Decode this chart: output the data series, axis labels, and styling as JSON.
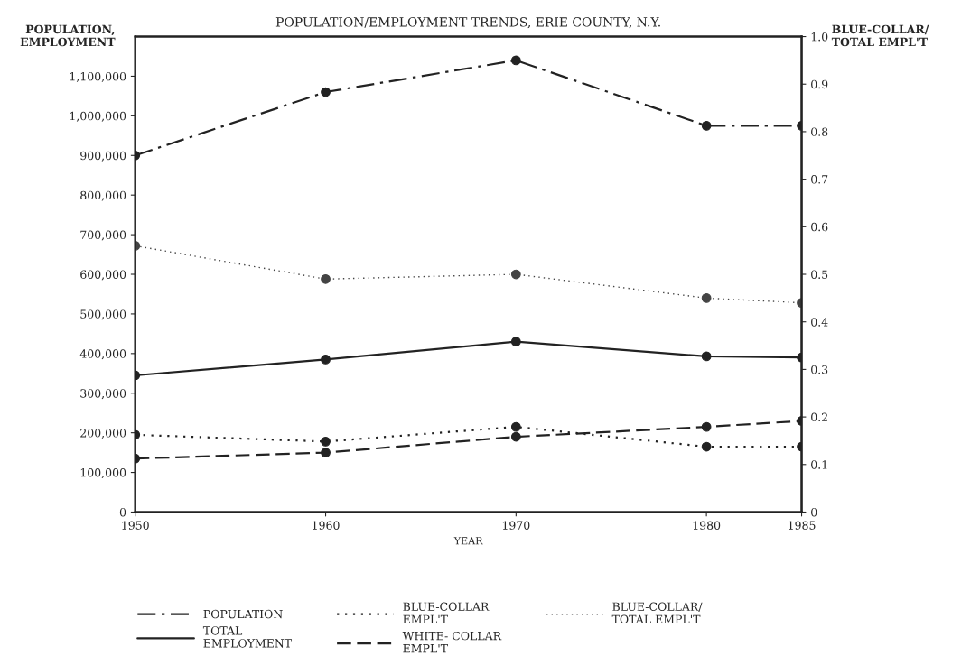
{
  "chart_data": {
    "type": "line",
    "title": "POPULATION/EMPLOYMENT TRENDS, ERIE COUNTY, N.Y.",
    "xlabel": "YEAR",
    "ylabel": "POPULATION,\nEMPLOYMENT",
    "y2label": "BLUE-COLLAR/\nTOTAL EMPL'T",
    "x": [
      1950,
      1960,
      1970,
      1980,
      1985
    ],
    "series": [
      {
        "name": "POPULATION",
        "color": "#222222",
        "line_style": "dashdot",
        "values": [
          900000,
          1060000,
          1140000,
          975000,
          975000
        ]
      },
      {
        "name": "TOTAL\nEMPLOYMENT",
        "color": "#222222",
        "line_style": "solid",
        "values": [
          345000,
          385000,
          430000,
          393000,
          390000
        ]
      },
      {
        "name": "BLUE-COLLAR\nEMPL'T",
        "color": "#222222",
        "line_style": "dotted",
        "values": [
          195000,
          178000,
          215000,
          165000,
          165000
        ]
      },
      {
        "name": "WHITE- COLLAR\nEMPL'T",
        "color": "#222222",
        "line_style": "dashed",
        "values": [
          135000,
          150000,
          190000,
          215000,
          230000
        ]
      },
      {
        "name": "BLUE-COLLAR/\nTOTAL EMPL'T",
        "color": "#444444",
        "line_style": "dotted",
        "axis": "y2",
        "values": [
          0.56,
          0.49,
          0.5,
          0.45,
          0.44
        ]
      }
    ],
    "xlim": [
      1950,
      1985
    ],
    "xticks": [
      1950,
      1960,
      1970,
      1980,
      1985
    ],
    "ylim": [
      0,
      1200000
    ],
    "yticks": [
      0,
      {
        "value": 100000,
        "label": "100,000"
      },
      {
        "value": 200000,
        "label": "200,000"
      },
      {
        "value": 300000,
        "label": "300,000"
      },
      {
        "value": 400000,
        "label": "400,000"
      },
      {
        "value": 500000,
        "label": "500,000"
      },
      {
        "value": 600000,
        "label": "600,000"
      },
      {
        "value": 700000,
        "label": "700,000"
      },
      {
        "value": 800000,
        "label": "800,000"
      },
      {
        "value": 900000,
        "label": "900,000"
      },
      {
        "value": 1000000,
        "label": "1,000,000"
      },
      {
        "value": 1100000,
        "label": "1,100,000"
      }
    ],
    "y2lim": [
      0,
      1
    ],
    "y2ticks": [
      0,
      {
        "value": 0.1,
        "label": "0.1"
      },
      {
        "value": 0.2,
        "label": "0.2"
      },
      {
        "value": 0.3,
        "label": "0.3"
      },
      {
        "value": 0.4,
        "label": "0.4"
      },
      {
        "value": 0.5,
        "label": "0.5"
      },
      {
        "value": 0.6,
        "label": "0.6"
      },
      {
        "value": 0.7,
        "label": "0.7"
      },
      {
        "value": 0.8,
        "label": "0.8"
      },
      {
        "value": 0.9,
        "label": "0.9"
      },
      {
        "value": 1,
        "label": "1.0"
      }
    ],
    "marker": "circle",
    "grid": false,
    "legend": "bottom"
  }
}
